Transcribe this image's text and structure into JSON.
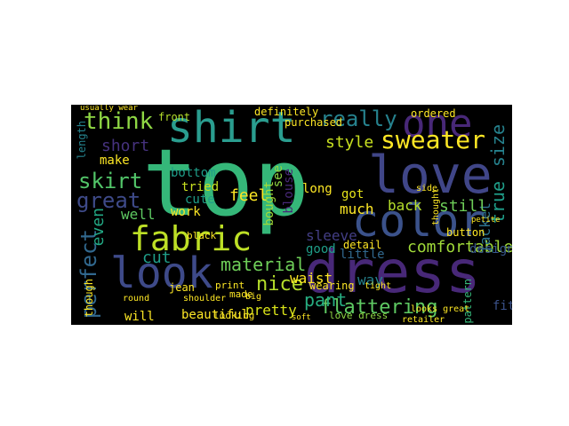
{
  "wordcloud": {
    "background": "#000000",
    "words": [
      {
        "text": "top",
        "color": "#35b779"
      },
      {
        "text": "dress",
        "color": "#482878"
      },
      {
        "text": "one",
        "color": "#482878"
      },
      {
        "text": "love",
        "color": "#404688"
      },
      {
        "text": "color",
        "color": "#3b528b"
      },
      {
        "text": "shirt",
        "color": "#2a9d8f"
      },
      {
        "text": "look",
        "color": "#3e4a89"
      },
      {
        "text": "fabric",
        "color": "#bddf26"
      },
      {
        "text": "sweater",
        "color": "#fde725"
      },
      {
        "text": "really",
        "color": "#26828e"
      },
      {
        "text": "think",
        "color": "#8fd744"
      },
      {
        "text": "skirt",
        "color": "#52c569"
      },
      {
        "text": "great",
        "color": "#3e4a89"
      },
      {
        "text": "perfect",
        "color": "#31688e"
      },
      {
        "text": "flattering",
        "color": "#5ec962"
      },
      {
        "text": "material",
        "color": "#6ece58"
      },
      {
        "text": "comfortable",
        "color": "#a0da39"
      },
      {
        "text": "pant",
        "color": "#27ad81"
      },
      {
        "text": "size",
        "color": "#26828e"
      },
      {
        "text": "true",
        "color": "#1f9e89"
      },
      {
        "text": "jacket",
        "color": "#2c728e"
      },
      {
        "text": "style",
        "color": "#c8e020"
      },
      {
        "text": "short",
        "color": "#46327e"
      },
      {
        "text": "make",
        "color": "#fde725"
      },
      {
        "text": "even",
        "color": "#22a884"
      },
      {
        "text": "tried",
        "color": "#c8e020"
      },
      {
        "text": "cute",
        "color": "#1f9e89"
      },
      {
        "text": "work",
        "color": "#fde725"
      },
      {
        "text": "feel",
        "color": "#fde725"
      },
      {
        "text": "long",
        "color": "#fde725"
      },
      {
        "text": "nice",
        "color": "#b5de2b"
      },
      {
        "text": "pretty",
        "color": "#d8e219"
      },
      {
        "text": "cut",
        "color": "#1f9e89"
      },
      {
        "text": "sleeve",
        "color": "#433e85"
      },
      {
        "text": "good",
        "color": "#1f9e89"
      },
      {
        "text": "much",
        "color": "#fde725"
      },
      {
        "text": "got",
        "color": "#e5e419"
      },
      {
        "text": "back",
        "color": "#b5de2b"
      },
      {
        "text": "still",
        "color": "#6ece58"
      },
      {
        "text": "little",
        "color": "#31688e"
      },
      {
        "text": "way",
        "color": "#26828e"
      },
      {
        "text": "design",
        "color": "#38588c"
      },
      {
        "text": "fit",
        "color": "#3b528b"
      },
      {
        "text": "bottom",
        "color": "#1f9e89"
      },
      {
        "text": "front",
        "color": "#b5de2b"
      },
      {
        "text": "well",
        "color": "#5ec962"
      },
      {
        "text": "beautiful",
        "color": "#fde725"
      },
      {
        "text": "will",
        "color": "#fde725"
      },
      {
        "text": "waist",
        "color": "#fde725"
      },
      {
        "text": "wearing",
        "color": "#fde725"
      },
      {
        "text": "bought",
        "color": "#a0da39"
      },
      {
        "text": "see",
        "color": "#8fd744"
      },
      {
        "text": "blouse",
        "color": "#482878"
      },
      {
        "text": "detail",
        "color": "#fde725"
      },
      {
        "text": "definitely",
        "color": "#fde725"
      },
      {
        "text": "purchased",
        "color": "#fde725"
      },
      {
        "text": "ordered",
        "color": "#fde725"
      },
      {
        "text": "jean",
        "color": "#fde725"
      },
      {
        "text": "though",
        "color": "#fde725"
      },
      {
        "text": "length",
        "color": "#25838e"
      },
      {
        "text": "button",
        "color": "#fde725"
      },
      {
        "text": "pattern",
        "color": "#35b779"
      },
      {
        "text": "love dress",
        "color": "#8fd744"
      },
      {
        "text": "looks great",
        "color": "#fde725"
      },
      {
        "text": "retailer",
        "color": "#fde725"
      },
      {
        "text": "made",
        "color": "#fde725"
      },
      {
        "text": "looking",
        "color": "#fde725"
      },
      {
        "text": "black",
        "color": "#fde725"
      },
      {
        "text": "print",
        "color": "#fde725"
      },
      {
        "text": "shoulder",
        "color": "#fde725"
      },
      {
        "text": "tight",
        "color": "#fde725"
      },
      {
        "text": "side",
        "color": "#fde725"
      },
      {
        "text": "big",
        "color": "#fde725"
      },
      {
        "text": "round",
        "color": "#fde725"
      },
      {
        "text": "thought",
        "color": "#fde725"
      },
      {
        "text": "usually wear",
        "color": "#fde725"
      },
      {
        "text": "petite",
        "color": "#fde725"
      },
      {
        "text": "soft",
        "color": "#fde725"
      }
    ]
  }
}
